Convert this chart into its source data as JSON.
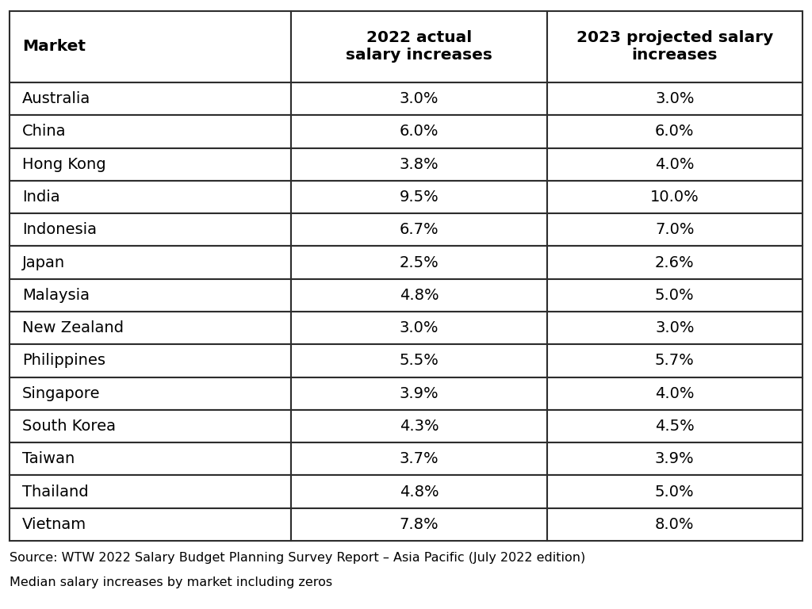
{
  "markets": [
    "Australia",
    "China",
    "Hong Kong",
    "India",
    "Indonesia",
    "Japan",
    "Malaysia",
    "New Zealand",
    "Philippines",
    "Singapore",
    "South Korea",
    "Taiwan",
    "Thailand",
    "Vietnam"
  ],
  "col2022": [
    "3.0%",
    "6.0%",
    "3.8%",
    "9.5%",
    "6.7%",
    "2.5%",
    "4.8%",
    "3.0%",
    "5.5%",
    "3.9%",
    "4.3%",
    "3.7%",
    "4.8%",
    "7.8%"
  ],
  "col2023": [
    "3.0%",
    "6.0%",
    "4.0%",
    "10.0%",
    "7.0%",
    "2.6%",
    "5.0%",
    "3.0%",
    "5.7%",
    "4.0%",
    "4.5%",
    "3.9%",
    "5.0%",
    "8.0%"
  ],
  "header_col1": "Market",
  "header_col2": "2022 actual\nsalary increases",
  "header_col3": "2023 projected salary\nincreases",
  "source_line1": "Source: WTW 2022 Salary Budget Planning Survey Report – Asia Pacific (July 2022 edition)",
  "source_line2": "Median salary increases by market including zeros",
  "bg_color": "#ffffff",
  "border_color": "#2d2d2d",
  "text_color": "#000000",
  "header_font_size": 14.5,
  "cell_font_size": 14,
  "footer_font_size": 11.5
}
